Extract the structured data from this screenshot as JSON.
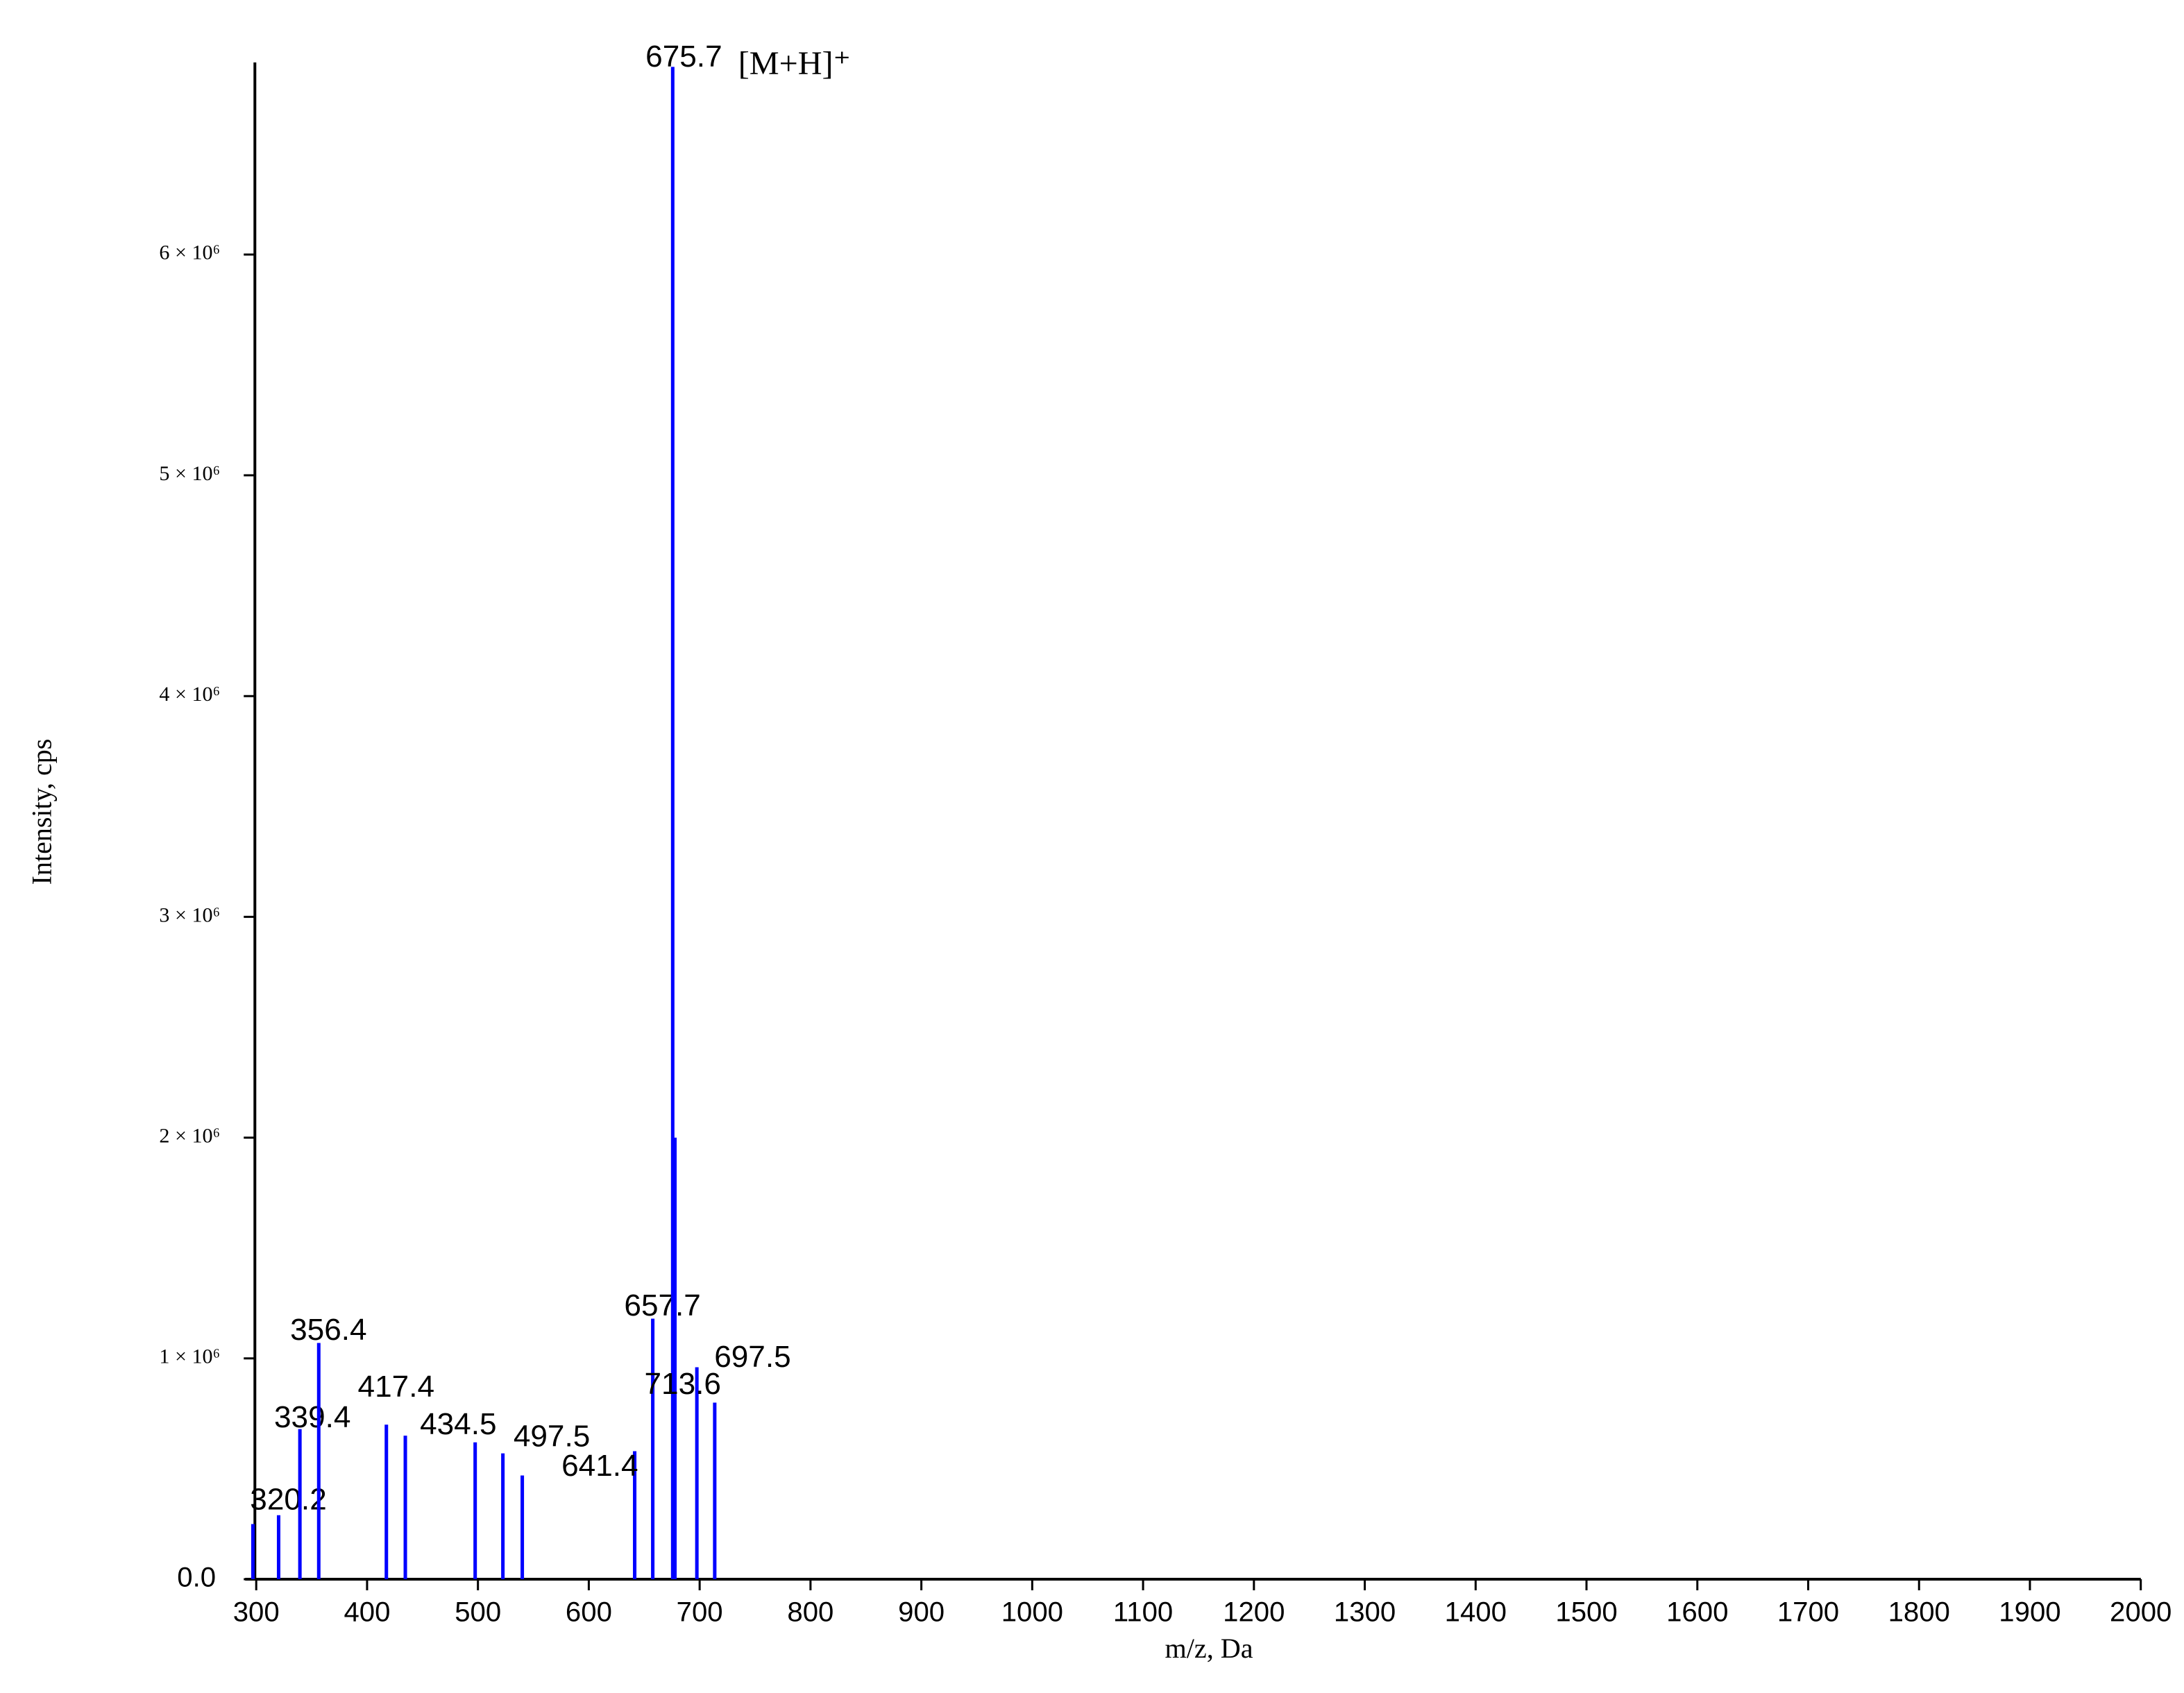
{
  "chart_data": {
    "type": "stem",
    "x_label": "m/z, Da",
    "y_label": "Intensity, cps",
    "annotation": "[M+H]⁺",
    "color": "#0000ff",
    "x": [
      297,
      320.2,
      339.4,
      356.4,
      417.4,
      434.5,
      497.5,
      522.5,
      540,
      641.4,
      657.7,
      675.7,
      677.7,
      697.5,
      713.6
    ],
    "values": [
      250000,
      290000,
      680000,
      1070000,
      700000,
      650000,
      620000,
      570000,
      470000,
      580000,
      1180000,
      6850000,
      2000000,
      960000,
      800000
    ],
    "labeled": [
      false,
      true,
      true,
      true,
      true,
      true,
      true,
      false,
      false,
      true,
      true,
      true,
      false,
      true,
      true
    ],
    "xlim": [
      290,
      1990
    ],
    "xticks": [
      300,
      400,
      500,
      600,
      700,
      800,
      900,
      1000,
      1100,
      1200,
      1300,
      1400,
      1500,
      1600,
      1700,
      1800,
      1900,
      2000
    ],
    "ylim": [
      0,
      6870000
    ],
    "yticks": [
      {
        "value": 0,
        "label": "0.0"
      },
      {
        "value": 1000000,
        "label": "1 × 10⁶"
      },
      {
        "value": 2000000,
        "label": "2 × 10⁶"
      },
      {
        "value": 3000000,
        "label": "3 × 10⁶"
      },
      {
        "value": 4000000,
        "label": "4 × 10⁶"
      },
      {
        "value": 5000000,
        "label": "5 × 10⁶"
      },
      {
        "value": 6000000,
        "label": "6 × 10⁶"
      }
    ]
  }
}
